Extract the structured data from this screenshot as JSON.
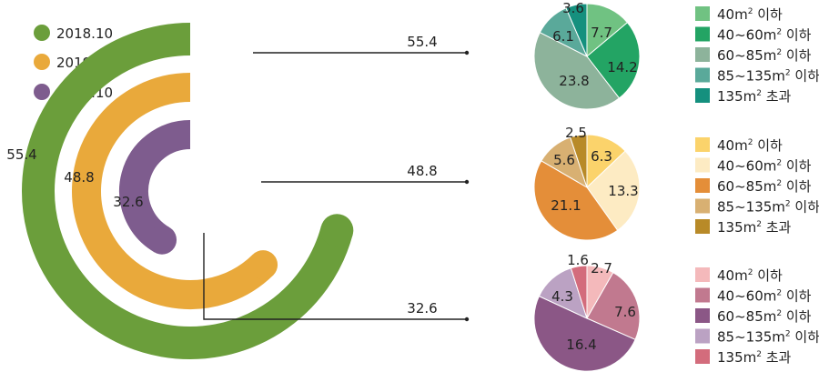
{
  "chart_data": [
    {
      "type": "radial_bar",
      "series": [
        {
          "name": "2018.10",
          "value": 55.4,
          "color": "#6b9e3b"
        },
        {
          "name": "2019.10",
          "value": 48.8,
          "color": "#e9a93b"
        },
        {
          "name": "2020.10",
          "value": 32.6,
          "color": "#7e5c8e"
        }
      ]
    },
    {
      "type": "pie",
      "year": "2018.10",
      "slices": [
        {
          "label": "40m² 이하",
          "value": 7.7,
          "color": "#70c282"
        },
        {
          "label": "40~60m² 이하",
          "value": 14.2,
          "color": "#23a464"
        },
        {
          "label": "60~85m² 이하",
          "value": 23.8,
          "color": "#8db39b"
        },
        {
          "label": "85~135m² 이하",
          "value": 6.1,
          "color": "#5aa99a"
        },
        {
          "label": "135m² 초과",
          "value": 3.6,
          "color": "#15907e"
        }
      ]
    },
    {
      "type": "pie",
      "year": "2019.10",
      "slices": [
        {
          "label": "40m² 이하",
          "value": 6.3,
          "color": "#fbd36b"
        },
        {
          "label": "40~60m² 이하",
          "value": 13.3,
          "color": "#fdebc3"
        },
        {
          "label": "60~85m² 이하",
          "value": 21.1,
          "color": "#e48e39"
        },
        {
          "label": "85~135m² 이하",
          "value": 5.6,
          "color": "#d8b072"
        },
        {
          "label": "135m² 초과",
          "value": 2.5,
          "color": "#b88a28"
        }
      ]
    },
    {
      "type": "pie",
      "year": "2020.10",
      "slices": [
        {
          "label": "40m² 이하",
          "value": 2.7,
          "color": "#f4b9bb"
        },
        {
          "label": "40~60m² 이하",
          "value": 7.6,
          "color": "#c1798f"
        },
        {
          "label": "60~85m² 이하",
          "value": 16.4,
          "color": "#8b5786"
        },
        {
          "label": "85~135m² 이하",
          "value": 4.3,
          "color": "#bba2c3"
        },
        {
          "label": "135m² 초과",
          "value": 1.6,
          "color": "#d36c7c"
        }
      ]
    }
  ]
}
